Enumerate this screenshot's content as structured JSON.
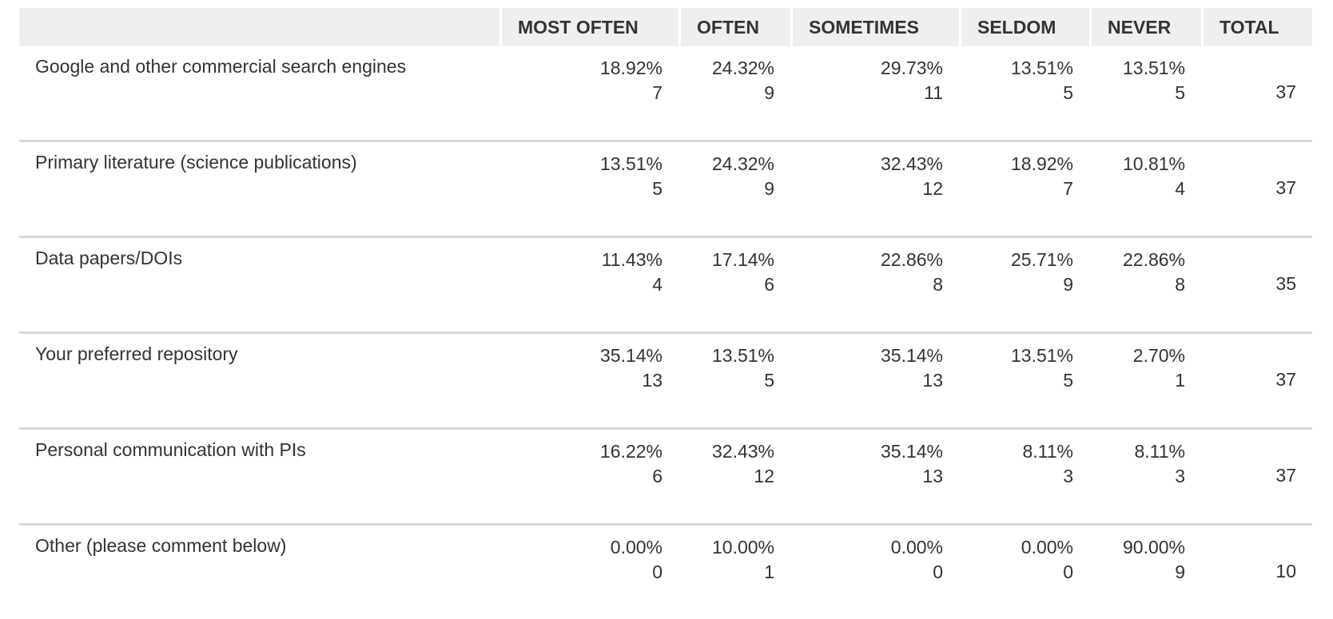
{
  "headers": {
    "most_often": "MOST OFTEN",
    "often": "OFTEN",
    "sometimes": "SOMETIMES",
    "seldom": "SELDOM",
    "never": "NEVER",
    "total": "TOTAL"
  },
  "rows": [
    {
      "label": "Google and other commercial search engines",
      "most_often": {
        "pct": "18.92%",
        "n": "7"
      },
      "often": {
        "pct": "24.32%",
        "n": "9"
      },
      "sometimes": {
        "pct": "29.73%",
        "n": "11"
      },
      "seldom": {
        "pct": "13.51%",
        "n": "5"
      },
      "never": {
        "pct": "13.51%",
        "n": "5"
      },
      "total": "37"
    },
    {
      "label": "Primary literature (science publications)",
      "most_often": {
        "pct": "13.51%",
        "n": "5"
      },
      "often": {
        "pct": "24.32%",
        "n": "9"
      },
      "sometimes": {
        "pct": "32.43%",
        "n": "12"
      },
      "seldom": {
        "pct": "18.92%",
        "n": "7"
      },
      "never": {
        "pct": "10.81%",
        "n": "4"
      },
      "total": "37"
    },
    {
      "label": "Data papers/DOIs",
      "most_often": {
        "pct": "11.43%",
        "n": "4"
      },
      "often": {
        "pct": "17.14%",
        "n": "6"
      },
      "sometimes": {
        "pct": "22.86%",
        "n": "8"
      },
      "seldom": {
        "pct": "25.71%",
        "n": "9"
      },
      "never": {
        "pct": "22.86%",
        "n": "8"
      },
      "total": "35"
    },
    {
      "label": "Your preferred repository",
      "most_often": {
        "pct": "35.14%",
        "n": "13"
      },
      "often": {
        "pct": "13.51%",
        "n": "5"
      },
      "sometimes": {
        "pct": "35.14%",
        "n": "13"
      },
      "seldom": {
        "pct": "13.51%",
        "n": "5"
      },
      "never": {
        "pct": "2.70%",
        "n": "1"
      },
      "total": "37"
    },
    {
      "label": "Personal communication with PIs",
      "most_often": {
        "pct": "16.22%",
        "n": "6"
      },
      "often": {
        "pct": "32.43%",
        "n": "12"
      },
      "sometimes": {
        "pct": "35.14%",
        "n": "13"
      },
      "seldom": {
        "pct": "8.11%",
        "n": "3"
      },
      "never": {
        "pct": "8.11%",
        "n": "3"
      },
      "total": "37"
    },
    {
      "label": "Other (please comment below)",
      "most_often": {
        "pct": "0.00%",
        "n": "0"
      },
      "often": {
        "pct": "10.00%",
        "n": "1"
      },
      "sometimes": {
        "pct": "0.00%",
        "n": "0"
      },
      "seldom": {
        "pct": "0.00%",
        "n": "0"
      },
      "never": {
        "pct": "90.00%",
        "n": "9"
      },
      "total": "10"
    }
  ],
  "chart_data": {
    "type": "table",
    "columns": [
      "MOST OFTEN",
      "OFTEN",
      "SOMETIMES",
      "SELDOM",
      "NEVER",
      "TOTAL"
    ],
    "rows": [
      {
        "label": "Google and other commercial search engines",
        "percent": [
          18.92,
          24.32,
          29.73,
          13.51,
          13.51
        ],
        "count": [
          7,
          9,
          11,
          5,
          5
        ],
        "total": 37
      },
      {
        "label": "Primary literature (science publications)",
        "percent": [
          13.51,
          24.32,
          32.43,
          18.92,
          10.81
        ],
        "count": [
          5,
          9,
          12,
          7,
          4
        ],
        "total": 37
      },
      {
        "label": "Data papers/DOIs",
        "percent": [
          11.43,
          17.14,
          22.86,
          25.71,
          22.86
        ],
        "count": [
          4,
          6,
          8,
          9,
          8
        ],
        "total": 35
      },
      {
        "label": "Your preferred repository",
        "percent": [
          35.14,
          13.51,
          35.14,
          13.51,
          2.7
        ],
        "count": [
          13,
          5,
          13,
          5,
          1
        ],
        "total": 37
      },
      {
        "label": "Personal communication with PIs",
        "percent": [
          16.22,
          32.43,
          35.14,
          8.11,
          8.11
        ],
        "count": [
          6,
          12,
          13,
          3,
          3
        ],
        "total": 37
      },
      {
        "label": "Other (please comment below)",
        "percent": [
          0.0,
          10.0,
          0.0,
          0.0,
          90.0
        ],
        "count": [
          0,
          1,
          0,
          0,
          9
        ],
        "total": 10
      }
    ],
    "colors": {
      "header_bg": "#efefef",
      "row_divider": "#d8d8d8",
      "text": "#333333"
    }
  }
}
